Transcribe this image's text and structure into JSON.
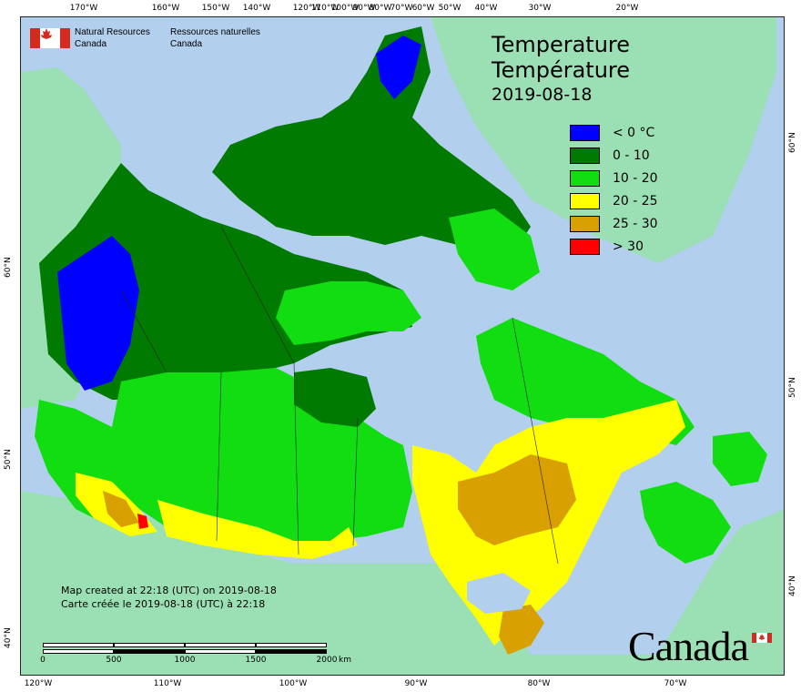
{
  "map": {
    "title_en": "Temperature",
    "title_fr": "Température",
    "date": "2019-08-18",
    "agency_en": [
      "Natural Resources",
      "Canada"
    ],
    "agency_fr": [
      "Ressources naturelles",
      "Canada"
    ],
    "created_en": "Map created at 22:18 (UTC) on 2019-08-18",
    "created_fr": "Carte créée le 2019-08-18 (UTC) à 22:18",
    "wordmark": "Canada",
    "legend": [
      {
        "label": "< 0 °C",
        "color": "#0000ff"
      },
      {
        "label": "0 - 10",
        "color": "#007a00"
      },
      {
        "label": "10 - 20",
        "color": "#11dd11"
      },
      {
        "label": "20 - 25",
        "color": "#ffff00"
      },
      {
        "label": "25 - 30",
        "color": "#d8a000"
      },
      {
        "label": "> 30",
        "color": "#ff0000"
      }
    ],
    "top_longitudes": [
      "170°W",
      "160°W",
      "150°W",
      "140°W",
      "120°W",
      "110°W",
      "100°W",
      "90°W",
      "80°W",
      "70°W",
      "60°W",
      "50°W",
      "40°W",
      "30°W",
      "20°W"
    ],
    "bottom_longitudes": [
      "120°W",
      "110°W",
      "100°W",
      "90°W",
      "80°W",
      "70°W"
    ],
    "left_latitudes": [
      "60°N",
      "50°N",
      "40°N"
    ],
    "right_latitudes": [
      "60°N",
      "50°N",
      "40°N"
    ],
    "scale_labels": [
      "0",
      "500",
      "1000",
      "1500",
      "2000",
      "km"
    ],
    "colors": {
      "ocean": "#b2cfee",
      "land_outside": "#9be0b4",
      "cold": "#0000ff",
      "cool": "#007a00",
      "mild": "#11dd11",
      "warm": "#ffff00",
      "hot": "#d8a000",
      "very_hot": "#ff0000"
    }
  }
}
